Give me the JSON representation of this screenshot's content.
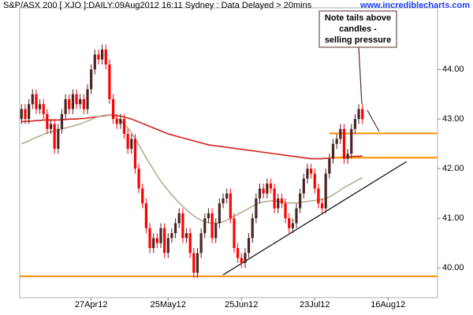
{
  "chart_data": {
    "type": "candlestick",
    "title": "S&P/ASX 200 [ XJO ]:DAILY:09Aug2012 16:11 Sydney : Data Delayed > 20mins",
    "source": "www.incrediblecharts.com",
    "annotation": {
      "lines": [
        "Note tails above",
        "candles -",
        "selling pressure"
      ]
    },
    "categories": [
      null,
      null,
      null,
      null,
      null,
      null,
      null,
      null,
      null,
      null,
      null,
      null,
      null,
      null,
      null,
      null,
      null,
      null,
      null,
      "27Apr12",
      null,
      null,
      null,
      null,
      null,
      null,
      null,
      null,
      null,
      null,
      null,
      null,
      null,
      null,
      null,
      null,
      null,
      null,
      null,
      null,
      "25May12",
      null,
      null,
      null,
      null,
      null,
      null,
      null,
      null,
      null,
      null,
      null,
      null,
      null,
      null,
      null,
      null,
      null,
      null,
      null,
      "25Jun12",
      null,
      null,
      null,
      null,
      null,
      null,
      null,
      null,
      null,
      null,
      null,
      null,
      null,
      null,
      null,
      null,
      null,
      null,
      null,
      "23Jul12",
      null,
      null,
      null,
      null,
      null,
      null,
      null,
      null,
      null,
      null,
      null,
      null,
      null,
      null,
      null,
      null,
      null,
      null,
      null,
      "16Aug12",
      null,
      null,
      null,
      null,
      null,
      null,
      null,
      null,
      null,
      null,
      null,
      null,
      null
    ],
    "open": [
      43.0,
      43.2,
      43.0,
      43.3,
      43.5,
      43.2,
      43.3,
      43.1,
      42.8,
      42.9,
      42.4,
      42.8,
      43.1,
      43.4,
      43.2,
      43.5,
      43.3,
      43.4,
      43.2,
      43.6,
      44.0,
      44.3,
      44.2,
      44.4,
      44.1,
      43.4,
      43.0,
      42.9,
      43.0,
      42.7,
      42.4,
      42.6,
      42.0,
      41.6,
      41.3,
      40.8,
      40.4,
      40.6,
      40.5,
      40.8,
      40.3,
      40.6,
      40.7,
      40.9,
      41.1,
      40.6,
      40.7,
      40.3,
      39.9,
      40.3,
      40.7,
      41.0,
      41.1,
      40.6,
      40.9,
      41.3,
      41.4,
      41.5,
      41.0,
      40.4,
      40.2,
      40.1,
      40.3,
      40.6,
      41.0,
      41.4,
      41.6,
      41.5,
      41.7,
      41.6,
      41.2,
      41.4,
      41.3,
      41.0,
      40.8,
      40.9,
      41.2,
      41.5,
      41.8,
      42.0,
      41.9,
      41.6,
      41.3,
      41.2,
      41.9,
      42.2,
      42.5,
      42.6,
      42.8,
      42.2,
      42.3,
      42.8,
      43.0,
      43.2,
      null,
      null,
      null,
      null,
      null,
      null,
      null,
      null,
      null,
      null,
      null,
      null,
      null,
      null,
      null,
      null,
      null,
      null,
      null,
      null
    ],
    "high": [
      43.3,
      43.3,
      43.4,
      43.6,
      43.6,
      43.4,
      43.4,
      43.2,
      43.0,
      43.0,
      42.9,
      43.2,
      43.5,
      43.5,
      43.6,
      43.6,
      43.5,
      43.5,
      43.7,
      44.1,
      44.4,
      44.4,
      44.5,
      44.5,
      44.2,
      43.5,
      43.1,
      43.1,
      43.1,
      42.8,
      42.7,
      42.7,
      42.1,
      41.7,
      41.4,
      40.9,
      40.7,
      40.7,
      40.9,
      40.9,
      40.7,
      40.8,
      41.0,
      41.2,
      41.2,
      40.8,
      40.8,
      40.4,
      40.4,
      40.8,
      41.1,
      41.2,
      41.2,
      41.0,
      41.4,
      41.5,
      41.6,
      41.6,
      41.1,
      40.5,
      40.3,
      40.4,
      40.7,
      41.1,
      41.5,
      41.7,
      41.7,
      41.8,
      41.8,
      41.7,
      41.5,
      41.5,
      41.4,
      41.1,
      41.0,
      41.3,
      41.6,
      41.9,
      42.1,
      42.1,
      42.0,
      41.7,
      41.4,
      42.0,
      42.3,
      42.6,
      42.7,
      42.9,
      42.9,
      42.4,
      42.9,
      43.1,
      43.3,
      43.3,
      null,
      null,
      null,
      null,
      null,
      null,
      null,
      null,
      null,
      null,
      null,
      null,
      null,
      null,
      null,
      null,
      null,
      null,
      null,
      null
    ],
    "low": [
      42.9,
      42.9,
      42.9,
      43.2,
      43.1,
      43.1,
      43.0,
      42.7,
      42.7,
      42.3,
      42.3,
      42.7,
      43.0,
      43.1,
      43.1,
      43.2,
      43.2,
      43.1,
      43.1,
      43.5,
      43.9,
      44.1,
      44.1,
      44.0,
      43.3,
      42.9,
      42.8,
      42.8,
      42.6,
      42.3,
      42.3,
      41.9,
      41.5,
      41.2,
      40.7,
      40.3,
      40.3,
      40.4,
      40.4,
      40.2,
      40.2,
      40.5,
      40.6,
      40.8,
      40.5,
      40.5,
      40.2,
      39.8,
      39.8,
      40.2,
      40.6,
      40.9,
      40.5,
      40.5,
      40.8,
      41.2,
      41.3,
      40.9,
      40.3,
      40.1,
      40.0,
      40.0,
      40.2,
      40.5,
      40.9,
      41.3,
      41.4,
      41.4,
      41.5,
      41.1,
      41.1,
      41.2,
      40.9,
      40.7,
      40.7,
      40.8,
      41.1,
      41.4,
      41.7,
      41.8,
      41.5,
      41.2,
      41.1,
      41.1,
      41.8,
      42.1,
      42.4,
      42.5,
      42.1,
      42.1,
      42.2,
      42.7,
      42.9,
      42.9,
      null,
      null,
      null,
      null,
      null,
      null,
      null,
      null,
      null,
      null,
      null,
      null,
      null,
      null,
      null,
      null,
      null,
      null,
      null,
      null
    ],
    "close": [
      43.2,
      43.0,
      43.3,
      43.5,
      43.2,
      43.3,
      43.1,
      42.8,
      42.9,
      42.4,
      42.8,
      43.1,
      43.4,
      43.2,
      43.5,
      43.3,
      43.4,
      43.2,
      43.6,
      44.0,
      44.3,
      44.2,
      44.4,
      44.1,
      43.4,
      43.0,
      42.9,
      43.0,
      42.7,
      42.4,
      42.6,
      42.0,
      41.6,
      41.3,
      40.8,
      40.4,
      40.6,
      40.5,
      40.8,
      40.3,
      40.6,
      40.7,
      40.9,
      41.1,
      40.6,
      40.7,
      40.3,
      39.9,
      40.3,
      40.7,
      41.0,
      41.1,
      40.6,
      40.9,
      41.3,
      41.4,
      41.5,
      41.0,
      40.4,
      40.2,
      40.1,
      40.3,
      40.6,
      41.0,
      41.4,
      41.6,
      41.5,
      41.7,
      41.6,
      41.2,
      41.4,
      41.3,
      41.0,
      40.8,
      40.9,
      41.2,
      41.5,
      41.8,
      42.0,
      41.9,
      41.6,
      41.3,
      41.2,
      41.9,
      42.2,
      42.5,
      42.6,
      42.8,
      42.2,
      42.3,
      42.8,
      43.0,
      43.2,
      43.0,
      null,
      null,
      null,
      null,
      null,
      null,
      null,
      null,
      null,
      null,
      null,
      null,
      null,
      null,
      null,
      null,
      null,
      null,
      null,
      null
    ],
    "up_color": "#4b2525",
    "down_color": "#ff0000",
    "moving_averages": [
      {
        "color": "#d42020",
        "values": [
          42.95,
          42.95,
          42.96,
          42.96,
          42.97,
          42.97,
          42.98,
          42.98,
          42.98,
          42.98,
          42.98,
          42.99,
          42.99,
          43.0,
          43.0,
          43.0,
          43.01,
          43.01,
          43.02,
          43.03,
          43.04,
          43.05,
          43.06,
          43.07,
          43.08,
          43.08,
          43.07,
          43.06,
          43.04,
          43.02,
          43.0,
          42.97,
          42.94,
          42.91,
          42.88,
          42.85,
          42.82,
          42.79,
          42.76,
          42.73,
          42.7,
          42.68,
          42.66,
          42.64,
          42.62,
          42.6,
          42.58,
          42.56,
          42.54,
          42.52,
          42.5,
          42.48,
          42.47,
          42.46,
          42.45,
          42.44,
          42.43,
          42.42,
          42.41,
          42.4,
          42.39,
          42.38,
          42.37,
          42.36,
          42.35,
          42.34,
          42.33,
          42.32,
          42.31,
          42.3,
          42.29,
          42.28,
          42.27,
          42.26,
          42.25,
          42.24,
          42.23,
          42.22,
          42.21,
          42.2,
          42.2,
          42.2,
          42.2,
          42.21,
          42.21,
          42.22,
          42.22,
          42.23,
          42.23,
          42.24,
          42.24,
          42.25,
          42.25,
          42.26,
          null,
          null,
          null,
          null,
          null,
          null,
          null,
          null,
          null,
          null,
          null,
          null,
          null,
          null,
          null,
          null,
          null,
          null,
          null,
          null
        ]
      },
      {
        "color": "#b8ab92",
        "values": [
          42.5,
          42.53,
          42.56,
          42.6,
          42.63,
          42.66,
          42.69,
          42.72,
          42.74,
          42.76,
          42.78,
          42.8,
          42.82,
          42.84,
          42.86,
          42.88,
          42.9,
          42.93,
          42.96,
          42.99,
          43.02,
          43.05,
          43.07,
          43.08,
          43.08,
          43.06,
          43.02,
          42.97,
          42.9,
          42.82,
          42.72,
          42.6,
          42.48,
          42.35,
          42.22,
          42.1,
          41.98,
          41.86,
          41.75,
          41.65,
          41.56,
          41.47,
          41.39,
          41.31,
          41.24,
          41.17,
          41.11,
          41.05,
          41.0,
          40.96,
          40.93,
          40.91,
          40.9,
          40.9,
          40.91,
          40.93,
          40.96,
          41.0,
          41.04,
          41.08,
          41.12,
          41.16,
          41.2,
          41.24,
          41.28,
          41.31,
          41.33,
          41.34,
          41.35,
          41.35,
          41.34,
          41.33,
          41.32,
          41.31,
          41.31,
          41.31,
          41.32,
          41.33,
          41.34,
          41.35,
          41.36,
          41.37,
          41.38,
          41.4,
          41.43,
          41.47,
          41.52,
          41.57,
          41.62,
          41.66,
          41.7,
          41.74,
          41.78,
          41.82,
          null,
          null,
          null,
          null,
          null,
          null,
          null,
          null,
          null,
          null,
          null,
          null,
          null,
          null,
          null,
          null,
          null,
          null,
          null,
          null
        ]
      }
    ],
    "hlines": [
      {
        "value": 39.83,
        "color": "#ff8c00"
      },
      {
        "value": 42.71,
        "color": "#ff8c00",
        "start": 84
      },
      {
        "value": 42.22,
        "color": "#ff8c00",
        "start": 84
      }
    ],
    "trendline": {
      "x": [
        55,
        105
      ],
      "values": [
        39.86,
        42.14
      ],
      "color": "#000000"
    },
    "ylim": [
      39.4,
      45.24
    ],
    "yticks": [
      {
        "value": 40,
        "label": "40.00"
      },
      {
        "value": 41,
        "label": "41.00"
      },
      {
        "value": 42,
        "label": "42.00"
      },
      {
        "value": 43,
        "label": "43.00"
      },
      {
        "value": 44,
        "label": "44.00"
      }
    ]
  }
}
